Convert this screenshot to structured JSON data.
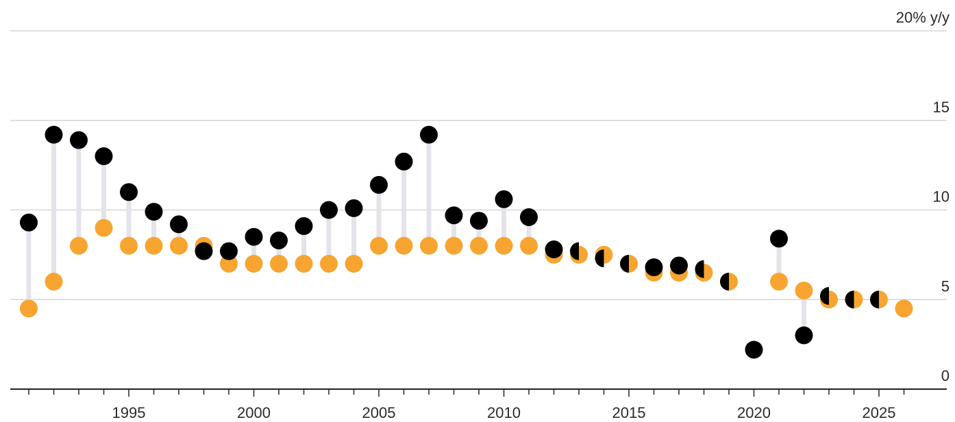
{
  "chart_data": {
    "type": "scatter",
    "y_unit_label": "20% y/y",
    "yticks": [
      0,
      5,
      10,
      15,
      20
    ],
    "ytick_labels": [
      "0",
      "5",
      "10",
      "15",
      "20% y/y"
    ],
    "ylim": [
      0,
      20
    ],
    "xlim": [
      1990.5,
      2026.5
    ],
    "xticks": [
      1995,
      2000,
      2005,
      2010,
      2015,
      2020,
      2025
    ],
    "xtick_labels": [
      "1995",
      "2000",
      "2005",
      "2010",
      "2015",
      "2020",
      "2025"
    ],
    "grid": true,
    "colors": {
      "actual": "#000000",
      "target": "#f7a530",
      "stem": "#e4e3ec"
    },
    "series": [
      {
        "key": "target",
        "x": [
          1991,
          1992,
          1993,
          1994,
          1995,
          1996,
          1997,
          1998,
          1999,
          2000,
          2001,
          2002,
          2003,
          2004,
          2005,
          2006,
          2007,
          2008,
          2009,
          2010,
          2011,
          2012,
          2013,
          2014,
          2015,
          2016,
          2017,
          2018,
          2019,
          2021,
          2022,
          2023,
          2024,
          2025,
          2026
        ],
        "values": [
          4.5,
          6.0,
          8.0,
          9.0,
          8.0,
          8.0,
          8.0,
          8.0,
          7.0,
          7.0,
          7.0,
          7.0,
          7.0,
          7.0,
          8.0,
          8.0,
          8.0,
          8.0,
          8.0,
          8.0,
          8.0,
          7.5,
          7.5,
          7.5,
          7.0,
          6.5,
          6.5,
          6.5,
          6.0,
          6.0,
          5.5,
          5.0,
          5.0,
          5.0,
          4.5
        ]
      },
      {
        "key": "actual",
        "x": [
          1991,
          1992,
          1993,
          1994,
          1995,
          1996,
          1997,
          1998,
          1999,
          2000,
          2001,
          2002,
          2003,
          2004,
          2005,
          2006,
          2007,
          2008,
          2009,
          2010,
          2011,
          2012,
          2013,
          2014,
          2015,
          2016,
          2017,
          2018,
          2019,
          2020,
          2021,
          2022,
          2023,
          2024,
          2025
        ],
        "values": [
          9.3,
          14.2,
          13.9,
          13.0,
          11.0,
          9.9,
          9.2,
          7.7,
          7.7,
          8.5,
          8.3,
          9.1,
          10.0,
          10.1,
          11.4,
          12.7,
          14.2,
          9.7,
          9.4,
          10.6,
          9.6,
          7.8,
          7.7,
          7.3,
          7.0,
          6.8,
          6.9,
          6.7,
          6.0,
          2.2,
          8.4,
          3.0,
          5.2,
          5.0,
          5.0
        ]
      }
    ]
  }
}
